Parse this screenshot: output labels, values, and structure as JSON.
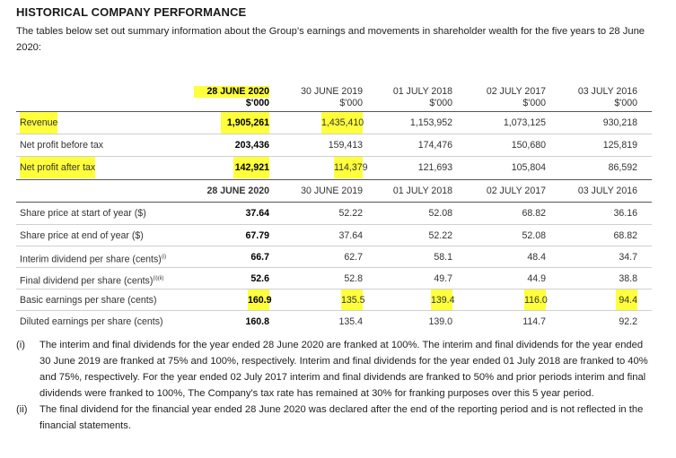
{
  "title": "HISTORICAL COMPANY PERFORMANCE",
  "intro": "The tables below set out summary information about the Group’s earnings and movements in shareholder wealth for the five years to 28 June 2020:",
  "columns": [
    {
      "date": "28 JUNE 2020",
      "unit": "$'000"
    },
    {
      "date": "30 JUNE 2019",
      "unit": "$'000"
    },
    {
      "date": "01 JULY 2018",
      "unit": "$'000"
    },
    {
      "date": "02 JULY 2017",
      "unit": "$'000"
    },
    {
      "date": "03 JULY 2016",
      "unit": "$'000"
    }
  ],
  "rows1": [
    {
      "label": "Revenue",
      "values": [
        "1,905,261",
        "1,435,410",
        "1,153,952",
        "1,073,125",
        "930,218"
      ]
    },
    {
      "label": "Net profit before tax",
      "values": [
        "203,436",
        "159,413",
        "174,476",
        "150,680",
        "125,819"
      ]
    },
    {
      "label": "Net profit after tax",
      "values": [
        "142,921",
        "114,379",
        "121,693",
        "105,804",
        "86,592"
      ]
    }
  ],
  "subheader": [
    "28 JUNE 2020",
    "30 JUNE 2019",
    "01 JULY 2018",
    "02 JULY 2017",
    "03 JULY 2016"
  ],
  "rows2": [
    {
      "label": "Share price at start of year ($)",
      "sup": "",
      "values": [
        "37.64",
        "52.22",
        "52.08",
        "68.82",
        "36.16"
      ]
    },
    {
      "label": "Share price at end of year ($)",
      "sup": "",
      "values": [
        "67.79",
        "37.64",
        "52.22",
        "52.08",
        "68.82"
      ]
    },
    {
      "label": "Interim dividend per share (cents)",
      "sup": "(i)",
      "values": [
        "66.7",
        "62.7",
        "58.1",
        "48.4",
        "34.7"
      ]
    },
    {
      "label": "Final dividend per share (cents)",
      "sup": "(i)(ii)",
      "values": [
        "52.6",
        "52.8",
        "49.7",
        "44.9",
        "38.8"
      ]
    },
    {
      "label": "Basic earnings per share (cents)",
      "sup": "",
      "values": [
        "160.9",
        "135.5",
        "139.4",
        "116.0",
        "94.4"
      ]
    },
    {
      "label": "Diluted earnings per share (cents)",
      "sup": "",
      "values": [
        "160.8",
        "135.4",
        "139.0",
        "114.7",
        "92.2"
      ]
    }
  ],
  "notes": [
    {
      "num": "(i)",
      "text": "The interim and final dividends for the year ended 28 June 2020 are franked at 100%. The interim and final dividends for the year ended 30 June 2019 are franked at 75% and 100%, respectively. Interim and final dividends for the year ended 01 July 2018 are franked to 40% and 75%, respectively. For the year ended 02 July 2017 interim and final dividends are franked to 50% and prior periods interim and final dividends were franked to 100%, The Company's tax rate has remained at 30% for franking purposes over this 5 year period."
    },
    {
      "num": "(ii)",
      "text": "The final dividend for the financial year ended 28 June 2020 was declared after the end of the reporting period and is not reflected in the financial statements."
    }
  ],
  "colors": {
    "highlight": "#ffff3b",
    "rule": "#cfcfcf"
  }
}
